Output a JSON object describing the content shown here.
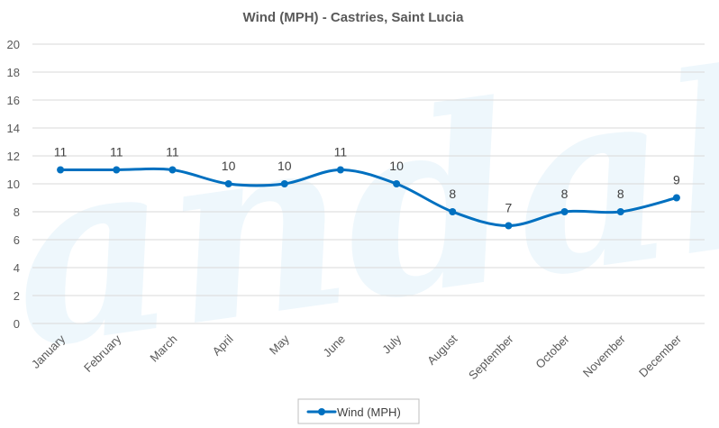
{
  "chart_data": {
    "type": "line",
    "title": "Wind (MPH) - Castries, Saint Lucia",
    "xlabel": "",
    "ylabel": "",
    "categories": [
      "January",
      "February",
      "March",
      "April",
      "May",
      "June",
      "July",
      "August",
      "September",
      "October",
      "November",
      "December"
    ],
    "series": [
      {
        "name": "Wind (MPH)",
        "values": [
          11,
          11,
          11,
          10,
          10,
          11,
          10,
          8,
          7,
          8,
          8,
          9
        ]
      }
    ],
    "ylim": [
      0,
      20
    ],
    "yticks": [
      "0",
      "2",
      "4",
      "6",
      "8",
      "10",
      "12",
      "14",
      "16",
      "18",
      "20"
    ],
    "grid": true,
    "legend_position": "bottom",
    "smooth": true,
    "series_color": "#0070C0",
    "grid_color": "#d9d9d9",
    "watermark_text": "Sandals"
  }
}
